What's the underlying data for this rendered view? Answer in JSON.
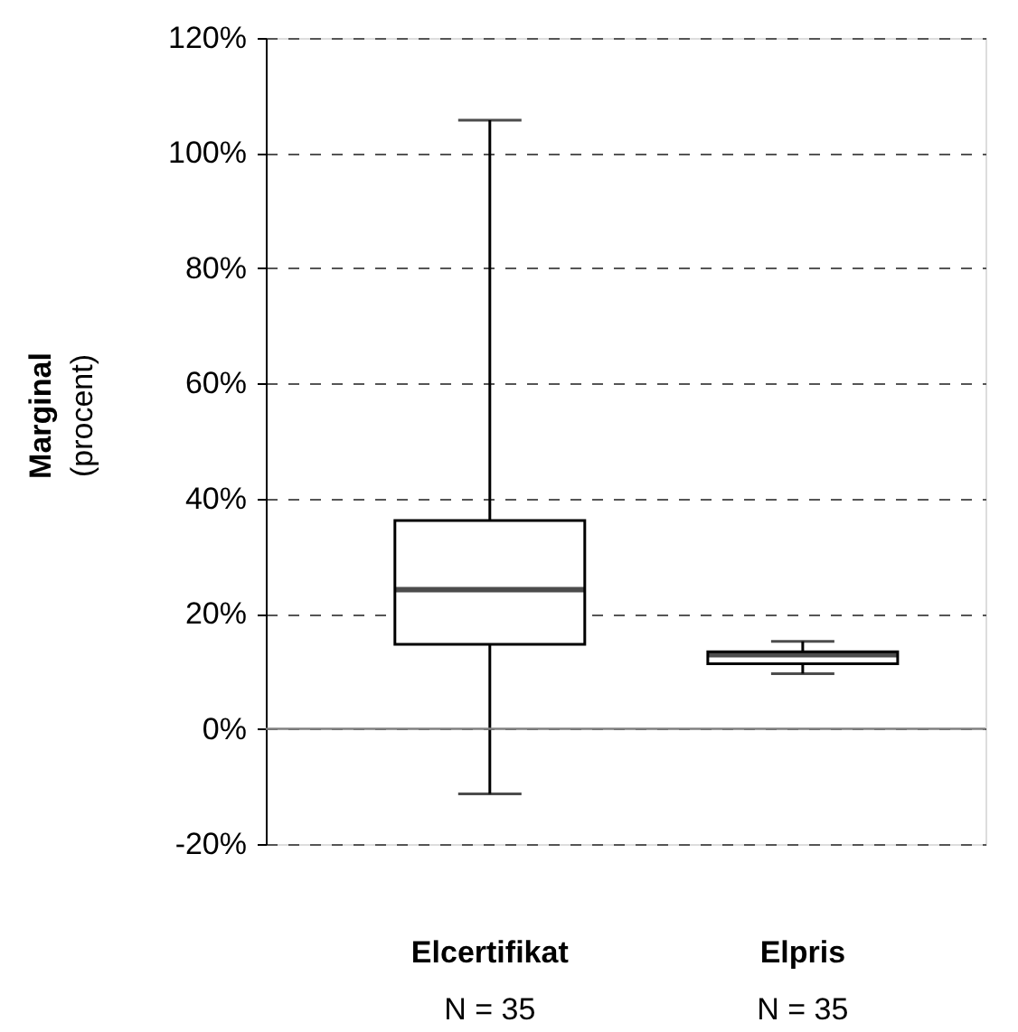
{
  "chart_data": {
    "type": "box",
    "ylabel": "Marginal (procent)",
    "categories": [
      "Elcertifikat",
      "Elpris"
    ],
    "boxes": [
      {
        "low": -11.3,
        "q1": 14.7,
        "median": 24.2,
        "q3": 36.2,
        "high": 105.7
      },
      {
        "low": 9.6,
        "q1": 11.3,
        "median": 12.9,
        "q3": 13.4,
        "high": 15.2
      }
    ],
    "ylim": [
      -20,
      120
    ],
    "yticks": [
      {
        "value": -20,
        "label": "-20%"
      },
      {
        "value": 0,
        "label": "0%"
      },
      {
        "value": 20,
        "label": "20%"
      },
      {
        "value": 40,
        "label": "40%"
      },
      {
        "value": 60,
        "label": "60%"
      },
      {
        "value": 80,
        "label": "80%"
      },
      {
        "value": 100,
        "label": "100%"
      },
      {
        "value": 120,
        "label": "120%"
      }
    ],
    "grid": "y",
    "ref_lines": [
      {
        "axis": "y",
        "value": 0,
        "color": "#808080",
        "line_style": "solid"
      }
    ],
    "annotations": [
      "N = 35",
      "N = 35"
    ]
  }
}
